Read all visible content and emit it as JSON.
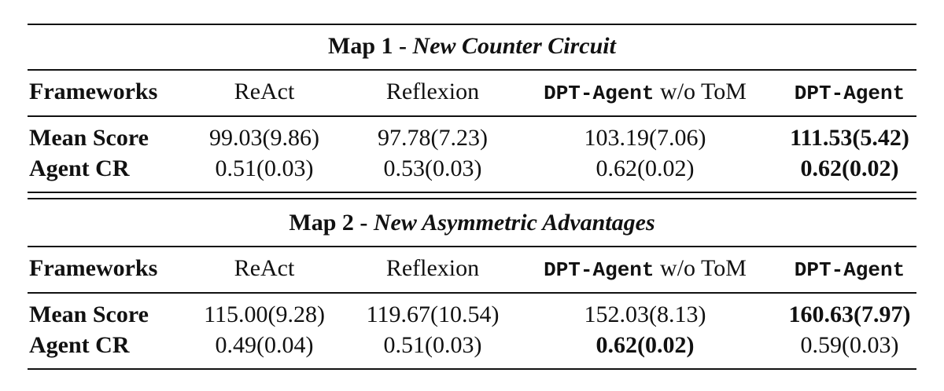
{
  "sections": [
    {
      "title_prefix": "Map 1 -",
      "title_name": "New Counter Circuit",
      "header": [
        {
          "text": "Frameworks"
        },
        {
          "text": "ReAct"
        },
        {
          "text": "Reflexion"
        },
        {
          "mono": "DPT-Agent",
          "text": "w/o ToM"
        },
        {
          "mono": "DPT-Agent"
        }
      ],
      "rows": [
        {
          "cells": [
            {
              "text": "Mean Score",
              "bold": true
            },
            {
              "text": "99.03(9.86)",
              "bold": false
            },
            {
              "text": "97.78(7.23)",
              "bold": false
            },
            {
              "text": "103.19(7.06)",
              "bold": false
            },
            {
              "text": "111.53(5.42)",
              "bold": true
            }
          ]
        },
        {
          "cells": [
            {
              "text": "Agent CR",
              "bold": true
            },
            {
              "text": "0.51(0.03)",
              "bold": false
            },
            {
              "text": "0.53(0.03)",
              "bold": false
            },
            {
              "text": "0.62(0.02)",
              "bold": false
            },
            {
              "text": "0.62(0.02)",
              "bold": true
            }
          ]
        }
      ]
    },
    {
      "title_prefix": "Map 2 -",
      "title_name": "New Asymmetric Advantages",
      "header": [
        {
          "text": "Frameworks"
        },
        {
          "text": "ReAct"
        },
        {
          "text": "Reflexion"
        },
        {
          "mono": "DPT-Agent",
          "text": "w/o ToM"
        },
        {
          "mono": "DPT-Agent"
        }
      ],
      "rows": [
        {
          "cells": [
            {
              "text": "Mean Score",
              "bold": true
            },
            {
              "text": "115.00(9.28)",
              "bold": false
            },
            {
              "text": "119.67(10.54)",
              "bold": false
            },
            {
              "text": "152.03(8.13)",
              "bold": false
            },
            {
              "text": "160.63(7.97)",
              "bold": true
            }
          ]
        },
        {
          "cells": [
            {
              "text": "Agent CR",
              "bold": true
            },
            {
              "text": "0.49(0.04)",
              "bold": false
            },
            {
              "text": "0.51(0.03)",
              "bold": false
            },
            {
              "text": "0.62(0.02)",
              "bold": true
            },
            {
              "text": "0.59(0.03)",
              "bold": false
            }
          ]
        }
      ]
    }
  ]
}
